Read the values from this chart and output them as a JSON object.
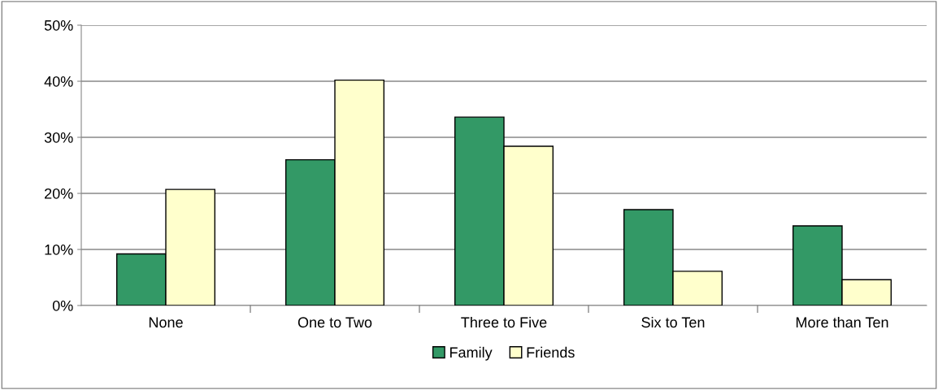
{
  "chart_data": {
    "type": "bar",
    "categories": [
      "None",
      "One to Two",
      "Three to Five",
      "Six to Ten",
      "More than Ten"
    ],
    "series": [
      {
        "name": "Family",
        "color": "#339966",
        "values": [
          9.2,
          26.0,
          33.6,
          17.1,
          14.2
        ]
      },
      {
        "name": "Friends",
        "color": "#ffffcc",
        "values": [
          20.7,
          40.2,
          28.4,
          6.1,
          4.6
        ]
      }
    ],
    "ylim": [
      0,
      50
    ],
    "yticks": [
      {
        "value": 0,
        "label": "0%"
      },
      {
        "value": 10,
        "label": "10%"
      },
      {
        "value": 20,
        "label": "20%"
      },
      {
        "value": 30,
        "label": "30%"
      },
      {
        "value": 40,
        "label": "40%"
      },
      {
        "value": 50,
        "label": "50%"
      }
    ],
    "grid": "y",
    "legend": "bottom"
  }
}
